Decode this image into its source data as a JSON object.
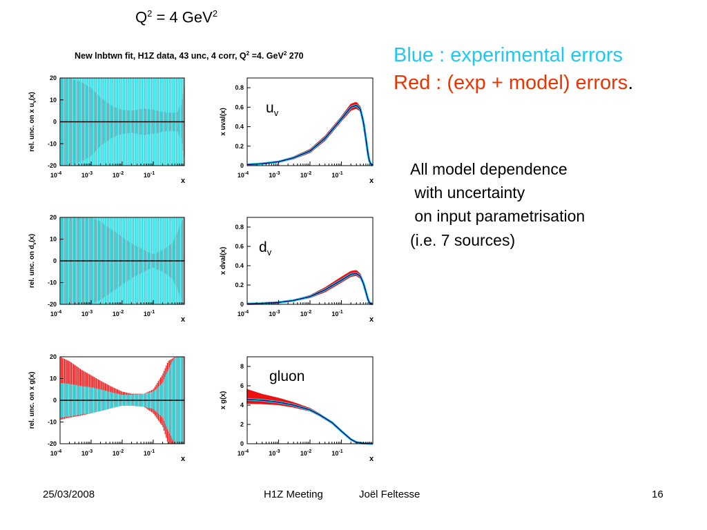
{
  "slide": {
    "title": {
      "base": "Q",
      "exp1": "2",
      "mid": " = 4 GeV",
      "exp2": "2"
    },
    "plot_title": {
      "pre": "New lnbtwn fit, H1Z data, 43 unc, 4 corr, Q",
      "exp": "2",
      "post": " =4. GeV",
      "exp2": "2",
      "tail": " 270"
    },
    "legend": {
      "blue": "Blue : experimental errors",
      "red": "Red : (exp + model) errors",
      "red_period": "."
    },
    "notes": [
      "All model dependence",
      " with uncertainty",
      " on input parametrisation",
      "(i.e. 7 sources)"
    ],
    "footer": {
      "date": "25/03/2008",
      "meeting": "H1Z Meeting",
      "author": "Joël Feltesse",
      "page": "16"
    }
  },
  "colors": {
    "experimental": "#22d8e0",
    "model": "#ee1111",
    "central": "#000080"
  },
  "chart_data": [
    {
      "type": "area",
      "id": "uv-relunc",
      "xscale": "log",
      "xlim": [
        0.0001,
        1
      ],
      "ylim": [
        -20,
        20
      ],
      "xlabel": "x",
      "ylabel": "rel. unc. on x u_v(x)",
      "yticks": [
        -20,
        -10,
        0,
        10,
        20
      ],
      "xticks": [
        {
          "base": "10",
          "exp": "-4"
        },
        {
          "base": "10",
          "exp": "-3"
        },
        {
          "base": "10",
          "exp": "-2"
        },
        {
          "base": "10",
          "exp": "-1"
        }
      ],
      "x": [
        0.0001,
        0.0002,
        0.0005,
        0.001,
        0.002,
        0.005,
        0.01,
        0.02,
        0.05,
        0.1,
        0.2,
        0.4,
        0.6,
        0.8,
        1.0
      ],
      "exp_band": [
        20,
        20,
        20,
        20,
        20,
        20,
        20,
        20,
        20,
        20,
        20,
        20,
        20,
        20,
        20
      ],
      "model_band": [
        20,
        20,
        18,
        15.5,
        11,
        7,
        5.5,
        5,
        6,
        5.5,
        4.5,
        4,
        4.5,
        8,
        16
      ]
    },
    {
      "type": "line",
      "id": "uv-pdf",
      "xscale": "log",
      "xlim": [
        0.0001,
        1
      ],
      "ylim": [
        0,
        0.9
      ],
      "xlabel": "x",
      "ylabel": "x uval(x)",
      "label": {
        "base": "u",
        "sub": "v"
      },
      "yticks": [
        0,
        0.2,
        0.4,
        0.6,
        0.8
      ],
      "xticks": [
        {
          "base": "10",
          "exp": "-4"
        },
        {
          "base": "10",
          "exp": "-3"
        },
        {
          "base": "10",
          "exp": "-2"
        },
        {
          "base": "10",
          "exp": "-1"
        }
      ],
      "x": [
        0.0001,
        0.0003,
        0.001,
        0.003,
        0.01,
        0.03,
        0.1,
        0.2,
        0.3,
        0.4,
        0.5,
        0.6,
        0.7,
        0.8,
        1.0
      ],
      "values": [
        0.01,
        0.02,
        0.04,
        0.08,
        0.15,
        0.28,
        0.48,
        0.6,
        0.62,
        0.58,
        0.45,
        0.28,
        0.12,
        0.03,
        0.0
      ],
      "model_upper": [
        0.01,
        0.02,
        0.045,
        0.09,
        0.165,
        0.3,
        0.5,
        0.63,
        0.65,
        0.6,
        0.47,
        0.3,
        0.13,
        0.035,
        0.0
      ],
      "model_lower": [
        0.01,
        0.02,
        0.035,
        0.07,
        0.135,
        0.26,
        0.46,
        0.57,
        0.59,
        0.56,
        0.43,
        0.26,
        0.11,
        0.025,
        0.0
      ]
    },
    {
      "type": "area",
      "id": "dv-relunc",
      "xscale": "log",
      "xlim": [
        0.0001,
        1
      ],
      "ylim": [
        -20,
        20
      ],
      "xlabel": "x",
      "ylabel": "rel. unc. on d_v(x)",
      "yticks": [
        -20,
        -10,
        0,
        10,
        20
      ],
      "xticks": [
        {
          "base": "10",
          "exp": "-4"
        },
        {
          "base": "10",
          "exp": "-3"
        },
        {
          "base": "10",
          "exp": "-2"
        },
        {
          "base": "10",
          "exp": "-1"
        }
      ],
      "x": [
        0.0001,
        0.0002,
        0.0005,
        0.001,
        0.002,
        0.005,
        0.01,
        0.02,
        0.05,
        0.1,
        0.2,
        0.4,
        0.6,
        0.8,
        1.0
      ],
      "exp_band": [
        20,
        20,
        20,
        20,
        20,
        20,
        20,
        20,
        20,
        20,
        20,
        20,
        20,
        20,
        20
      ],
      "model_band": [
        20,
        20,
        20,
        20,
        18,
        14,
        11,
        8,
        5,
        3,
        5,
        8,
        13,
        18,
        20
      ]
    },
    {
      "type": "line",
      "id": "dv-pdf",
      "xscale": "log",
      "xlim": [
        0.0001,
        1
      ],
      "ylim": [
        0,
        0.9
      ],
      "xlabel": "x",
      "ylabel": "x dval(x)",
      "label": {
        "base": "d",
        "sub": "v"
      },
      "yticks": [
        0,
        0.2,
        0.4,
        0.6,
        0.8
      ],
      "xticks": [
        {
          "base": "10",
          "exp": "-4"
        },
        {
          "base": "10",
          "exp": "-3"
        },
        {
          "base": "10",
          "exp": "-2"
        },
        {
          "base": "10",
          "exp": "-1"
        }
      ],
      "x": [
        0.0001,
        0.0003,
        0.001,
        0.003,
        0.01,
        0.03,
        0.1,
        0.2,
        0.3,
        0.4,
        0.5,
        0.6,
        0.7,
        0.8,
        1.0
      ],
      "values": [
        0.005,
        0.01,
        0.02,
        0.04,
        0.08,
        0.15,
        0.25,
        0.31,
        0.32,
        0.29,
        0.22,
        0.13,
        0.05,
        0.01,
        0.0
      ],
      "model_upper": [
        0.005,
        0.01,
        0.022,
        0.045,
        0.09,
        0.17,
        0.28,
        0.34,
        0.35,
        0.31,
        0.23,
        0.14,
        0.06,
        0.015,
        0.0
      ],
      "model_lower": [
        0.005,
        0.01,
        0.018,
        0.035,
        0.07,
        0.13,
        0.23,
        0.29,
        0.3,
        0.27,
        0.21,
        0.12,
        0.045,
        0.008,
        0.0
      ]
    },
    {
      "type": "area",
      "id": "g-relunc",
      "xscale": "log",
      "xlim": [
        0.0001,
        1
      ],
      "ylim": [
        -20,
        20
      ],
      "xlabel": "x",
      "ylabel": "rel. unc. on x g(x)",
      "yticks": [
        -20,
        -10,
        0,
        10,
        20
      ],
      "xticks": [
        {
          "base": "10",
          "exp": "-4"
        },
        {
          "base": "10",
          "exp": "-3"
        },
        {
          "base": "10",
          "exp": "-2"
        },
        {
          "base": "10",
          "exp": "-1"
        }
      ],
      "x": [
        0.0001,
        0.0002,
        0.0005,
        0.001,
        0.002,
        0.005,
        0.01,
        0.02,
        0.05,
        0.1,
        0.2,
        0.3,
        0.5,
        0.8,
        1.0
      ],
      "exp_band": [
        8,
        7.5,
        6.5,
        6,
        5,
        3.5,
        2.5,
        2.5,
        3,
        4,
        8,
        14,
        20,
        20,
        20
      ],
      "model_upper": [
        20,
        18,
        14,
        11.5,
        9,
        6,
        4,
        3,
        3,
        5,
        12,
        18,
        20,
        20,
        20
      ],
      "model_lower": [
        9,
        8,
        7,
        6,
        5,
        3.5,
        2.5,
        2.5,
        3,
        6,
        12,
        20,
        20,
        20,
        20
      ]
    },
    {
      "type": "line",
      "id": "g-pdf",
      "xscale": "log",
      "xlim": [
        0.0001,
        1
      ],
      "ylim": [
        0,
        9
      ],
      "xlabel": "x",
      "ylabel": "x g(x)",
      "label": {
        "base": "gluon",
        "sub": ""
      },
      "yticks": [
        0,
        2,
        4,
        6,
        8
      ],
      "xticks": [
        {
          "base": "10",
          "exp": "-4"
        },
        {
          "base": "10",
          "exp": "-3"
        },
        {
          "base": "10",
          "exp": "-2"
        },
        {
          "base": "10",
          "exp": "-1"
        }
      ],
      "x": [
        0.0001,
        0.0003,
        0.001,
        0.003,
        0.01,
        0.02,
        0.05,
        0.1,
        0.2,
        0.3,
        0.5,
        0.7,
        1.0
      ],
      "values": [
        4.6,
        4.5,
        4.3,
        4.0,
        3.5,
        3.0,
        2.2,
        1.3,
        0.45,
        0.15,
        0.05,
        0.02,
        0.0
      ],
      "model_upper": [
        5.6,
        5.1,
        4.7,
        4.25,
        3.65,
        3.1,
        2.25,
        1.35,
        0.5,
        0.17,
        0.06,
        0.02,
        0.0
      ],
      "model_lower": [
        4.2,
        4.15,
        4.05,
        3.8,
        3.4,
        2.9,
        2.1,
        1.25,
        0.4,
        0.13,
        0.04,
        0.02,
        0.0
      ]
    }
  ]
}
